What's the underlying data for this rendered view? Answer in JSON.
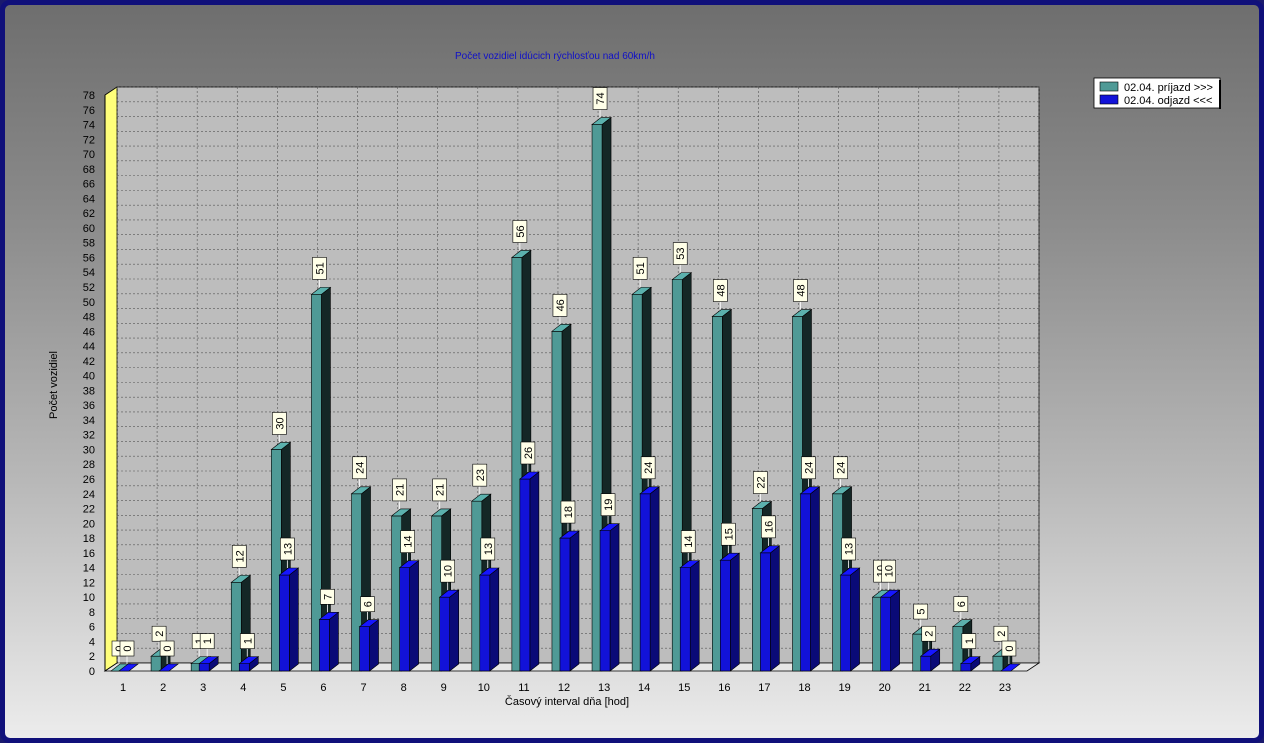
{
  "chart_data": {
    "type": "bar",
    "title": "Počet vozidiel idúcich rýchlosťou nad 60km/h",
    "xlabel": "Časový interval dňa [hod]",
    "ylabel": "Počet vozidiel",
    "ylim": [
      0,
      78
    ],
    "ytick_step": 2,
    "grid": true,
    "legend_position": "top-right",
    "categories": [
      "1",
      "2",
      "3",
      "4",
      "5",
      "6",
      "7",
      "8",
      "9",
      "10",
      "11",
      "12",
      "13",
      "14",
      "15",
      "16",
      "17",
      "18",
      "19",
      "20",
      "21",
      "22",
      "23"
    ],
    "series": [
      {
        "name": "02.04.  príjazd >>>",
        "color": "#4f9a96",
        "values": [
          0,
          2,
          1,
          12,
          30,
          51,
          24,
          21,
          21,
          23,
          56,
          46,
          74,
          51,
          53,
          48,
          22,
          48,
          24,
          10,
          5,
          6,
          2
        ]
      },
      {
        "name": "02.04.  odjazd <<<",
        "color": "#1212d8",
        "values": [
          0,
          0,
          1,
          1,
          13,
          7,
          6,
          14,
          10,
          13,
          26,
          18,
          19,
          24,
          14,
          15,
          16,
          24,
          13,
          10,
          2,
          1,
          0
        ]
      }
    ]
  }
}
